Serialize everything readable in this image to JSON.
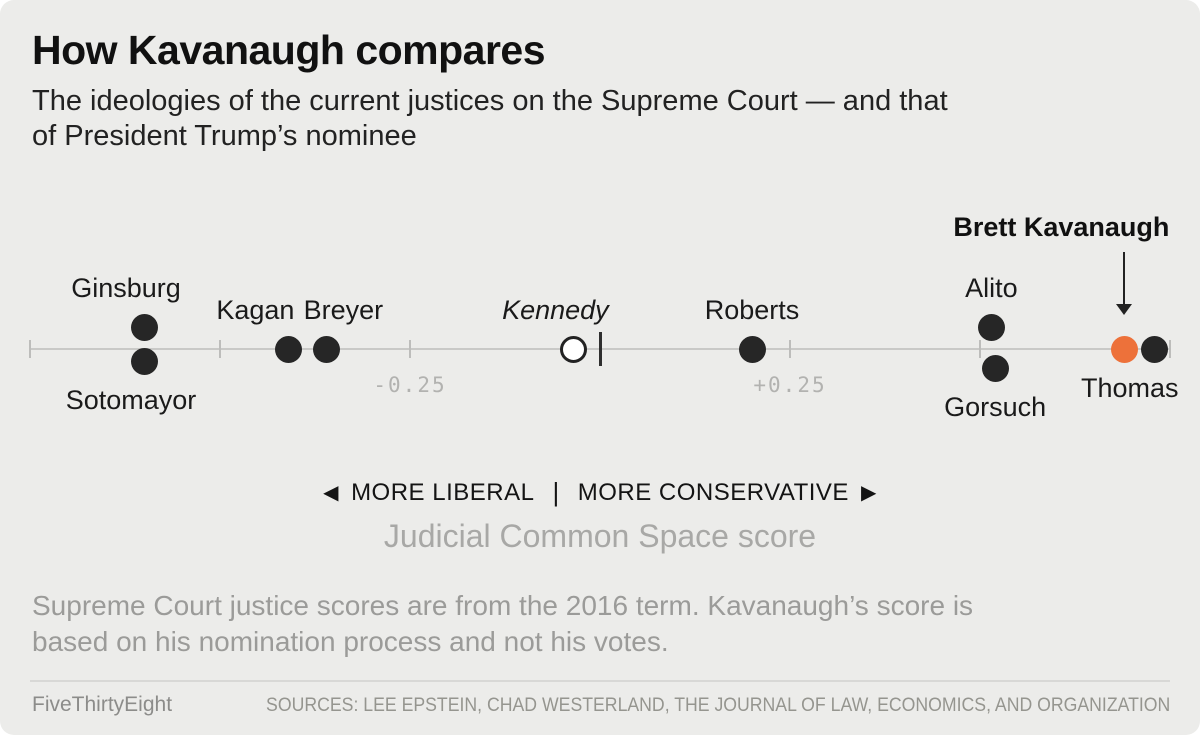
{
  "header": {
    "title": "How Kavanaugh compares",
    "subtitle": "The ideologies of the current justices on the Supreme Court — and that\nof President Trump’s nominee"
  },
  "chart_data": {
    "type": "scatter",
    "title": "How Kavanaugh compares",
    "xlabel": "Judicial Common Space score",
    "x_domain": [
      -0.75,
      0.75
    ],
    "axis_ticks": [
      -0.75,
      -0.5,
      -0.25,
      0,
      0.25,
      0.5,
      0.75
    ],
    "labeled_ticks": [
      {
        "value": -0.25,
        "label": "-0.25"
      },
      {
        "value": 0.25,
        "label": "+0.25"
      }
    ],
    "grid": false,
    "points": [
      {
        "name": "Ginsburg",
        "score": -0.6,
        "style": "solid",
        "dodge_dy": -22,
        "label_side": "above",
        "label_dx": -18,
        "label_italic": false
      },
      {
        "name": "Sotomayor",
        "score": -0.6,
        "style": "solid",
        "dodge_dy": 12,
        "label_side": "below",
        "label_dx": -13,
        "label_italic": false
      },
      {
        "name": "Kagan",
        "score": -0.41,
        "style": "solid",
        "dodge_dy": 0,
        "label_side": "above",
        "label_dx": -33,
        "label_italic": false
      },
      {
        "name": "Breyer",
        "score": -0.36,
        "style": "solid",
        "dodge_dy": 0,
        "label_side": "above",
        "label_dx": 17,
        "label_italic": false
      },
      {
        "name": "Kennedy",
        "score": -0.035,
        "style": "open",
        "dodge_dy": 0,
        "label_side": "above",
        "label_dx": -18,
        "label_italic": true
      },
      {
        "name": "Roberts",
        "score": 0.2,
        "style": "solid",
        "dodge_dy": 0,
        "label_side": "above",
        "label_dx": 0,
        "label_italic": false
      },
      {
        "name": "Alito",
        "score": 0.515,
        "style": "solid",
        "dodge_dy": -22,
        "label_side": "above",
        "label_dx": 0,
        "label_italic": false
      },
      {
        "name": "Gorsuch",
        "score": 0.52,
        "style": "solid",
        "dodge_dy": 19,
        "label_side": "below",
        "label_dx": 0,
        "label_italic": false
      },
      {
        "name": "Kavanaugh",
        "score": 0.69,
        "style": "highlight",
        "dodge_dy": 0,
        "label_side": "none",
        "label_dx": 0,
        "label_italic": false
      },
      {
        "name": "Thomas",
        "score": 0.73,
        "style": "solid",
        "dodge_dy": 0,
        "label_side": "below",
        "label_dx": -25,
        "label_italic": false
      }
    ],
    "annotation": {
      "text": "Brett Kavanaugh",
      "score": 0.69
    },
    "direction_legend": {
      "left_arrow": "◀",
      "left": "MORE LIBERAL",
      "separator": "|",
      "right": "MORE CONSERVATIVE",
      "right_arrow": "▶"
    }
  },
  "footnote": "Supreme Court justice scores are from the 2016 term. Kavanaugh’s score is\nbased on his nomination process and not his votes.",
  "footer": {
    "brand": "FiveThirtyEight",
    "sources": "SOURCES: LEE EPSTEIN, CHAD WESTERLAND, THE JOURNAL OF LAW, ECONOMICS, AND ORGANIZATION"
  },
  "colors": {
    "background": "#ececea",
    "dot": "#262626",
    "highlight": "#ed713a",
    "axis": "#c9c9c7",
    "muted_text": "#9b9b99"
  }
}
